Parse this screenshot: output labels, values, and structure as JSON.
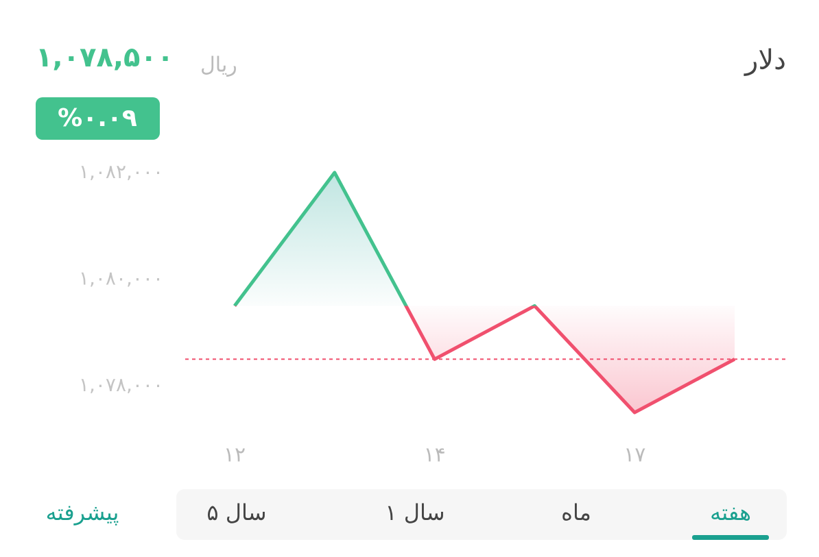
{
  "header": {
    "title": "دلار",
    "price": "۱,۰۷۸,۵۰۰",
    "unit": "ریال",
    "change": "%۰.۰۹"
  },
  "chart_data": {
    "type": "line",
    "categories": [
      "۱۲",
      null,
      "۱۴",
      null,
      "۱۷",
      null
    ],
    "values": [
      1079500,
      1082000,
      1078500,
      1079500,
      1077500,
      1078500
    ],
    "up_color": "#43c28e",
    "down_color": "#f0506e",
    "reference_line": 1078500,
    "ylim": [
      1077000,
      1082500
    ],
    "yticks": [
      {
        "value": 1078000,
        "label": "۱,۰۷۸,۰۰۰"
      },
      {
        "value": 1080000,
        "label": "۱,۰۸۰,۰۰۰"
      },
      {
        "value": 1082000,
        "label": "۱,۰۸۲,۰۰۰"
      }
    ]
  },
  "tabs": {
    "items": [
      "هفته",
      "ماه",
      "۱ سال",
      "۵ سال"
    ],
    "active": "هفته",
    "advanced": "پیشرفته"
  }
}
